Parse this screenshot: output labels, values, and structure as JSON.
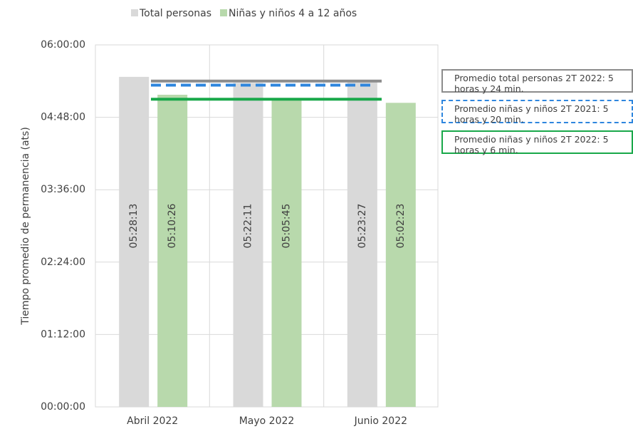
{
  "chart_data": {
    "type": "bar",
    "y_axis_label": "Tiempo promedio de permanencia (ats)",
    "categories": [
      "Abril 2022",
      "Mayo 2022",
      "Junio 2022"
    ],
    "series": [
      {
        "name": "Total personas",
        "color": "#d9d9d9",
        "values": [
          19693,
          19331,
          19407
        ],
        "value_labels": [
          "05:28:13",
          "05:22:11",
          "05:23:27"
        ]
      },
      {
        "name": "Niñas y niños 4 a 12 años",
        "color": "#b8d9ac",
        "values": [
          18626,
          18345,
          18143
        ],
        "value_labels": [
          "05:10:26",
          "05:05:45",
          "05:02:23"
        ]
      }
    ],
    "ylim": [
      0,
      21600
    ],
    "yticks": [
      {
        "value": 0,
        "label": "00:00:00"
      },
      {
        "value": 4320,
        "label": "01:12:00"
      },
      {
        "value": 8640,
        "label": "02:24:00"
      },
      {
        "value": 12960,
        "label": "03:36:00"
      },
      {
        "value": 17280,
        "label": "04:48:00"
      },
      {
        "value": 21600,
        "label": "06:00:00"
      }
    ],
    "grid": true,
    "legend_position": "top",
    "reference_lines": [
      {
        "label": "Promedio total personas 2T 2022: 5 horas y 24 min.",
        "value": 19440,
        "color": "#8c8c8c",
        "style": "solid"
      },
      {
        "label": "Promedio niñas y niños 2T 2021: 5 horas y 20 min.",
        "value": 19200,
        "color": "#2e86de",
        "style": "dashed"
      },
      {
        "label": "Promedio niñas y niños 2T 2022: 5 horas y 6 min.",
        "value": 18360,
        "color": "#19a84a",
        "style": "solid"
      }
    ]
  }
}
